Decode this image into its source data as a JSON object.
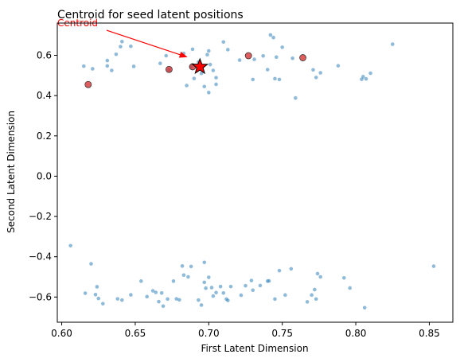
{
  "chart_data": {
    "type": "scatter",
    "title": "Centroid for seed latent positions",
    "xlabel": "First Latent Dimension",
    "ylabel": "Second Latent Dimension",
    "xlim": [
      0.597,
      0.866
    ],
    "ylim": [
      -0.725,
      0.76
    ],
    "xticks": [
      0.6,
      0.65,
      0.7,
      0.75,
      0.8,
      0.85
    ],
    "xtick_labels": [
      "0.60",
      "0.65",
      "0.70",
      "0.75",
      "0.80",
      "0.85"
    ],
    "yticks": [
      -0.6,
      -0.4,
      -0.2,
      0.0,
      0.2,
      0.4,
      0.6
    ],
    "ytick_labels": [
      "−0.6",
      "−0.4",
      "−0.2",
      "0.0",
      "0.2",
      "0.4",
      "0.6"
    ],
    "grid": false,
    "colors": {
      "all_points": "#1f77b4",
      "seed_points": "#d62728",
      "centroid": "#ff0000",
      "annotation": "#ff0000"
    },
    "series": [
      {
        "role": "all",
        "points": [
          [
            0.615,
            0.546
          ],
          [
            0.621,
            0.533
          ],
          [
            0.631,
            0.574
          ],
          [
            0.631,
            0.547
          ],
          [
            0.634,
            0.525
          ],
          [
            0.637,
            0.605
          ],
          [
            0.64,
            0.643
          ],
          [
            0.641,
            0.668
          ],
          [
            0.647,
            0.645
          ],
          [
            0.649,
            0.545
          ],
          [
            0.667,
            0.56
          ],
          [
            0.671,
            0.598
          ],
          [
            0.673,
            0.528
          ],
          [
            0.683,
            0.609
          ],
          [
            0.685,
            0.45
          ],
          [
            0.688,
            0.542
          ],
          [
            0.689,
            0.63
          ],
          [
            0.69,
            0.485
          ],
          [
            0.693,
            0.567
          ],
          [
            0.695,
            0.51
          ],
          [
            0.695,
            0.541
          ],
          [
            0.697,
            0.445
          ],
          [
            0.699,
            0.603
          ],
          [
            0.7,
            0.622
          ],
          [
            0.7,
            0.415
          ],
          [
            0.701,
            0.554
          ],
          [
            0.703,
            0.525
          ],
          [
            0.705,
            0.456
          ],
          [
            0.705,
            0.489
          ],
          [
            0.71,
            0.666
          ],
          [
            0.713,
            0.628
          ],
          [
            0.721,
            0.576
          ],
          [
            0.73,
            0.48
          ],
          [
            0.731,
            0.58
          ],
          [
            0.737,
            0.597
          ],
          [
            0.74,
            0.529
          ],
          [
            0.742,
            0.701
          ],
          [
            0.744,
            0.688
          ],
          [
            0.745,
            0.484
          ],
          [
            0.746,
            0.591
          ],
          [
            0.748,
            0.48
          ],
          [
            0.75,
            0.64
          ],
          [
            0.757,
            0.585
          ],
          [
            0.759,
            0.388
          ],
          [
            0.771,
            0.528
          ],
          [
            0.773,
            0.49
          ],
          [
            0.776,
            0.513
          ],
          [
            0.788,
            0.548
          ],
          [
            0.804,
            0.481
          ],
          [
            0.805,
            0.494
          ],
          [
            0.807,
            0.483
          ],
          [
            0.81,
            0.511
          ],
          [
            0.825,
            0.655
          ],
          [
            0.606,
            -0.345
          ],
          [
            0.616,
            -0.581
          ],
          [
            0.62,
            -0.435
          ],
          [
            0.623,
            -0.588
          ],
          [
            0.624,
            -0.549
          ],
          [
            0.625,
            -0.607
          ],
          [
            0.628,
            -0.633
          ],
          [
            0.638,
            -0.609
          ],
          [
            0.641,
            -0.615
          ],
          [
            0.647,
            -0.589
          ],
          [
            0.654,
            -0.521
          ],
          [
            0.658,
            -0.598
          ],
          [
            0.662,
            -0.569
          ],
          [
            0.664,
            -0.577
          ],
          [
            0.666,
            -0.623
          ],
          [
            0.668,
            -0.58
          ],
          [
            0.669,
            -0.645
          ],
          [
            0.672,
            -0.61
          ],
          [
            0.676,
            -0.521
          ],
          [
            0.678,
            -0.609
          ],
          [
            0.68,
            -0.614
          ],
          [
            0.682,
            -0.446
          ],
          [
            0.683,
            -0.491
          ],
          [
            0.686,
            -0.5
          ],
          [
            0.688,
            -0.448
          ],
          [
            0.693,
            -0.615
          ],
          [
            0.695,
            -0.64
          ],
          [
            0.697,
            -0.428
          ],
          [
            0.697,
            -0.527
          ],
          [
            0.698,
            -0.556
          ],
          [
            0.7,
            -0.502
          ],
          [
            0.702,
            -0.553
          ],
          [
            0.703,
            -0.595
          ],
          [
            0.705,
            -0.578
          ],
          [
            0.708,
            -0.548
          ],
          [
            0.71,
            -0.58
          ],
          [
            0.712,
            -0.61
          ],
          [
            0.713,
            -0.617
          ],
          [
            0.715,
            -0.548
          ],
          [
            0.722,
            -0.591
          ],
          [
            0.725,
            -0.544
          ],
          [
            0.729,
            -0.518
          ],
          [
            0.73,
            -0.566
          ],
          [
            0.735,
            -0.543
          ],
          [
            0.74,
            -0.521
          ],
          [
            0.741,
            -0.52
          ],
          [
            0.745,
            -0.61
          ],
          [
            0.748,
            -0.469
          ],
          [
            0.752,
            -0.59
          ],
          [
            0.756,
            -0.46
          ],
          [
            0.767,
            -0.624
          ],
          [
            0.77,
            -0.59
          ],
          [
            0.772,
            -0.563
          ],
          [
            0.773,
            -0.61
          ],
          [
            0.774,
            -0.484
          ],
          [
            0.776,
            -0.5
          ],
          [
            0.792,
            -0.505
          ],
          [
            0.796,
            -0.555
          ],
          [
            0.806,
            -0.653
          ],
          [
            0.853,
            -0.447
          ]
        ]
      },
      {
        "role": "seed",
        "points": [
          [
            0.618,
            0.455
          ],
          [
            0.673,
            0.53
          ],
          [
            0.689,
            0.543
          ],
          [
            0.727,
            0.598
          ],
          [
            0.764,
            0.588
          ]
        ]
      }
    ],
    "centroid": [
      0.694,
      0.543
    ],
    "annotation": {
      "text": "Centroid",
      "xy": [
        0.685,
        0.592
      ],
      "xytext": [
        0.597,
        0.752
      ]
    }
  }
}
